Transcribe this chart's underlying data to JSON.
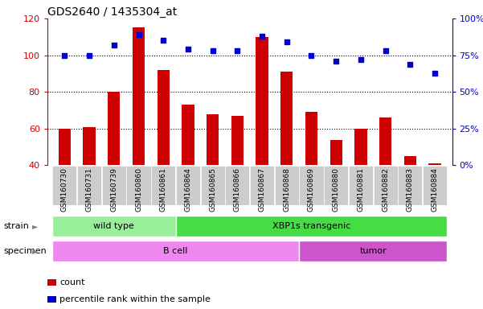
{
  "title": "GDS2640 / 1435304_at",
  "samples": [
    "GSM160730",
    "GSM160731",
    "GSM160739",
    "GSM160860",
    "GSM160861",
    "GSM160864",
    "GSM160865",
    "GSM160866",
    "GSM160867",
    "GSM160868",
    "GSM160869",
    "GSM160880",
    "GSM160881",
    "GSM160882",
    "GSM160883",
    "GSM160884"
  ],
  "counts": [
    60,
    61,
    80,
    115,
    92,
    73,
    68,
    67,
    110,
    91,
    69,
    54,
    60,
    66,
    45,
    41
  ],
  "percentiles": [
    75,
    75,
    82,
    89,
    85,
    79,
    78,
    78,
    88,
    84,
    75,
    71,
    72,
    78,
    69,
    63
  ],
  "ylim_left": [
    40,
    120
  ],
  "ylim_right": [
    0,
    100
  ],
  "yticks_left": [
    40,
    60,
    80,
    100,
    120
  ],
  "yticks_right": [
    0,
    25,
    50,
    75,
    100
  ],
  "yticklabels_right": [
    "0%",
    "25%",
    "50%",
    "75%",
    "100%"
  ],
  "bar_color": "#cc0000",
  "dot_color": "#0000cc",
  "strain_groups": [
    {
      "label": "wild type",
      "start": 0,
      "end": 5,
      "color": "#99ee99"
    },
    {
      "label": "XBP1s transgenic",
      "start": 5,
      "end": 16,
      "color": "#44dd44"
    }
  ],
  "specimen_groups": [
    {
      "label": "B cell",
      "start": 0,
      "end": 10,
      "color": "#ee88ee"
    },
    {
      "label": "tumor",
      "start": 10,
      "end": 16,
      "color": "#cc55cc"
    }
  ],
  "strain_label": "strain",
  "specimen_label": "specimen",
  "legend_count_label": "count",
  "legend_pct_label": "percentile rank within the sample",
  "bar_width": 0.5,
  "tick_bg_color": "#cccccc"
}
